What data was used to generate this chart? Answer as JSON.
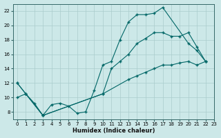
{
  "xlabel": "Humidex (Indice chaleur)",
  "background_color": "#cce8e8",
  "grid_color": "#aacccc",
  "line_color": "#006666",
  "xlim": [
    -0.5,
    23
  ],
  "ylim": [
    7,
    23
  ],
  "xticks": [
    0,
    1,
    2,
    3,
    4,
    5,
    6,
    7,
    8,
    9,
    10,
    11,
    12,
    13,
    14,
    15,
    16,
    17,
    18,
    19,
    20,
    21,
    22,
    23
  ],
  "yticks": [
    8,
    10,
    12,
    14,
    16,
    18,
    20,
    22
  ],
  "series": [
    {
      "x": [
        0,
        1,
        2,
        3,
        4,
        5,
        6,
        7,
        8,
        9,
        10,
        11,
        12,
        13,
        14,
        15,
        16,
        17,
        20,
        21,
        22
      ],
      "y": [
        12,
        10.5,
        9.2,
        7.5,
        9.0,
        9.2,
        8.8,
        7.8,
        8.0,
        11.0,
        14.5,
        15.0,
        18.0,
        20.5,
        21.5,
        21.5,
        21.7,
        22.5,
        17.5,
        16.5,
        15.0
      ]
    },
    {
      "x": [
        0,
        1,
        3,
        10,
        11,
        12,
        13,
        14,
        15,
        16,
        17,
        18,
        19,
        20,
        21,
        22
      ],
      "y": [
        12,
        10.5,
        7.5,
        10.5,
        14.0,
        15.0,
        16.0,
        17.5,
        18.2,
        19.0,
        19.0,
        18.5,
        18.5,
        19.0,
        17.0,
        15.0
      ]
    },
    {
      "x": [
        0,
        1,
        3,
        10,
        13,
        14,
        15,
        16,
        17,
        18,
        19,
        20,
        21,
        22
      ],
      "y": [
        10,
        10.5,
        7.5,
        10.5,
        12.5,
        13.0,
        13.5,
        14.0,
        14.5,
        14.5,
        14.8,
        15.0,
        14.5,
        15.0
      ]
    }
  ]
}
